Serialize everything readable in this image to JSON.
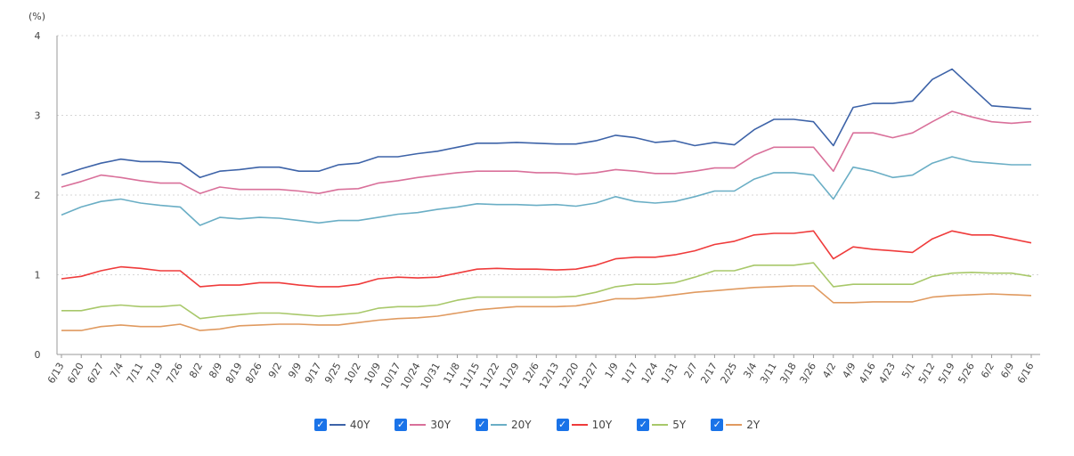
{
  "chart_data": {
    "type": "line",
    "unit_label": "(%)",
    "ylim": [
      0,
      4
    ],
    "yticks": [
      "0",
      "1",
      "2",
      "3",
      "4"
    ],
    "grid": "horizontal-dotted",
    "x_ticks": [
      "6/13",
      "6/20",
      "6/27",
      "7/4",
      "7/11",
      "7/19",
      "7/26",
      "8/2",
      "8/9",
      "8/19",
      "8/26",
      "9/2",
      "9/9",
      "9/17",
      "9/25",
      "10/2",
      "10/9",
      "10/17",
      "10/24",
      "10/31",
      "11/8",
      "11/15",
      "11/22",
      "11/29",
      "12/6",
      "12/13",
      "12/20",
      "12/27",
      "1/9",
      "1/17",
      "1/24",
      "1/31",
      "2/7",
      "2/17",
      "2/25",
      "3/4",
      "3/11",
      "3/18",
      "3/26",
      "4/2",
      "4/9",
      "4/16",
      "4/23",
      "5/1",
      "5/12",
      "5/19",
      "5/26",
      "6/2",
      "6/9",
      "6/16"
    ],
    "legend_position": "bottom-center",
    "series": [
      {
        "name": "40Y",
        "color": "#3d63a8",
        "values": [
          2.25,
          2.33,
          2.4,
          2.45,
          2.42,
          2.42,
          2.4,
          2.22,
          2.3,
          2.32,
          2.35,
          2.35,
          2.3,
          2.3,
          2.38,
          2.4,
          2.48,
          2.48,
          2.52,
          2.55,
          2.6,
          2.65,
          2.65,
          2.66,
          2.65,
          2.64,
          2.64,
          2.68,
          2.75,
          2.72,
          2.66,
          2.68,
          2.62,
          2.66,
          2.63,
          2.82,
          2.95,
          2.95,
          2.92,
          2.62,
          3.1,
          3.15,
          3.15,
          3.18,
          3.45,
          3.58,
          3.35,
          3.12,
          3.1,
          3.08
        ]
      },
      {
        "name": "30Y",
        "color": "#d9709a",
        "values": [
          2.1,
          2.17,
          2.25,
          2.22,
          2.18,
          2.15,
          2.15,
          2.02,
          2.1,
          2.07,
          2.07,
          2.07,
          2.05,
          2.02,
          2.07,
          2.08,
          2.15,
          2.18,
          2.22,
          2.25,
          2.28,
          2.3,
          2.3,
          2.3,
          2.28,
          2.28,
          2.26,
          2.28,
          2.32,
          2.3,
          2.27,
          2.27,
          2.3,
          2.34,
          2.34,
          2.5,
          2.6,
          2.6,
          2.6,
          2.3,
          2.78,
          2.78,
          2.72,
          2.78,
          2.92,
          3.05,
          2.98,
          2.92,
          2.9,
          2.92
        ]
      },
      {
        "name": "20Y",
        "color": "#6aaec5",
        "values": [
          1.75,
          1.85,
          1.92,
          1.95,
          1.9,
          1.87,
          1.85,
          1.62,
          1.72,
          1.7,
          1.72,
          1.71,
          1.68,
          1.65,
          1.68,
          1.68,
          1.72,
          1.76,
          1.78,
          1.82,
          1.85,
          1.89,
          1.88,
          1.88,
          1.87,
          1.88,
          1.86,
          1.9,
          1.98,
          1.92,
          1.9,
          1.92,
          1.98,
          2.05,
          2.05,
          2.2,
          2.28,
          2.28,
          2.25,
          1.95,
          2.35,
          2.3,
          2.22,
          2.25,
          2.4,
          2.48,
          2.42,
          2.4,
          2.38,
          2.38
        ]
      },
      {
        "name": "10Y",
        "color": "#ef3b3b",
        "values": [
          0.95,
          0.98,
          1.05,
          1.1,
          1.08,
          1.05,
          1.05,
          0.85,
          0.87,
          0.87,
          0.9,
          0.9,
          0.87,
          0.85,
          0.85,
          0.88,
          0.95,
          0.97,
          0.96,
          0.97,
          1.02,
          1.07,
          1.08,
          1.07,
          1.07,
          1.06,
          1.07,
          1.12,
          1.2,
          1.22,
          1.22,
          1.25,
          1.3,
          1.38,
          1.42,
          1.5,
          1.52,
          1.52,
          1.55,
          1.2,
          1.35,
          1.32,
          1.3,
          1.28,
          1.45,
          1.55,
          1.5,
          1.5,
          1.45,
          1.4
        ]
      },
      {
        "name": "5Y",
        "color": "#a8c86a",
        "values": [
          0.55,
          0.55,
          0.6,
          0.62,
          0.6,
          0.6,
          0.62,
          0.45,
          0.48,
          0.5,
          0.52,
          0.52,
          0.5,
          0.48,
          0.5,
          0.52,
          0.58,
          0.6,
          0.6,
          0.62,
          0.68,
          0.72,
          0.72,
          0.72,
          0.72,
          0.72,
          0.73,
          0.78,
          0.85,
          0.88,
          0.88,
          0.9,
          0.97,
          1.05,
          1.05,
          1.12,
          1.12,
          1.12,
          1.15,
          0.85,
          0.88,
          0.88,
          0.88,
          0.88,
          0.98,
          1.02,
          1.03,
          1.02,
          1.02,
          0.98
        ]
      },
      {
        "name": "2Y",
        "color": "#e09a60",
        "values": [
          0.3,
          0.3,
          0.35,
          0.37,
          0.35,
          0.35,
          0.38,
          0.3,
          0.32,
          0.36,
          0.37,
          0.38,
          0.38,
          0.37,
          0.37,
          0.4,
          0.43,
          0.45,
          0.46,
          0.48,
          0.52,
          0.56,
          0.58,
          0.6,
          0.6,
          0.6,
          0.61,
          0.65,
          0.7,
          0.7,
          0.72,
          0.75,
          0.78,
          0.8,
          0.82,
          0.84,
          0.85,
          0.86,
          0.86,
          0.65,
          0.65,
          0.66,
          0.66,
          0.66,
          0.72,
          0.74,
          0.75,
          0.76,
          0.75,
          0.74
        ]
      }
    ]
  }
}
